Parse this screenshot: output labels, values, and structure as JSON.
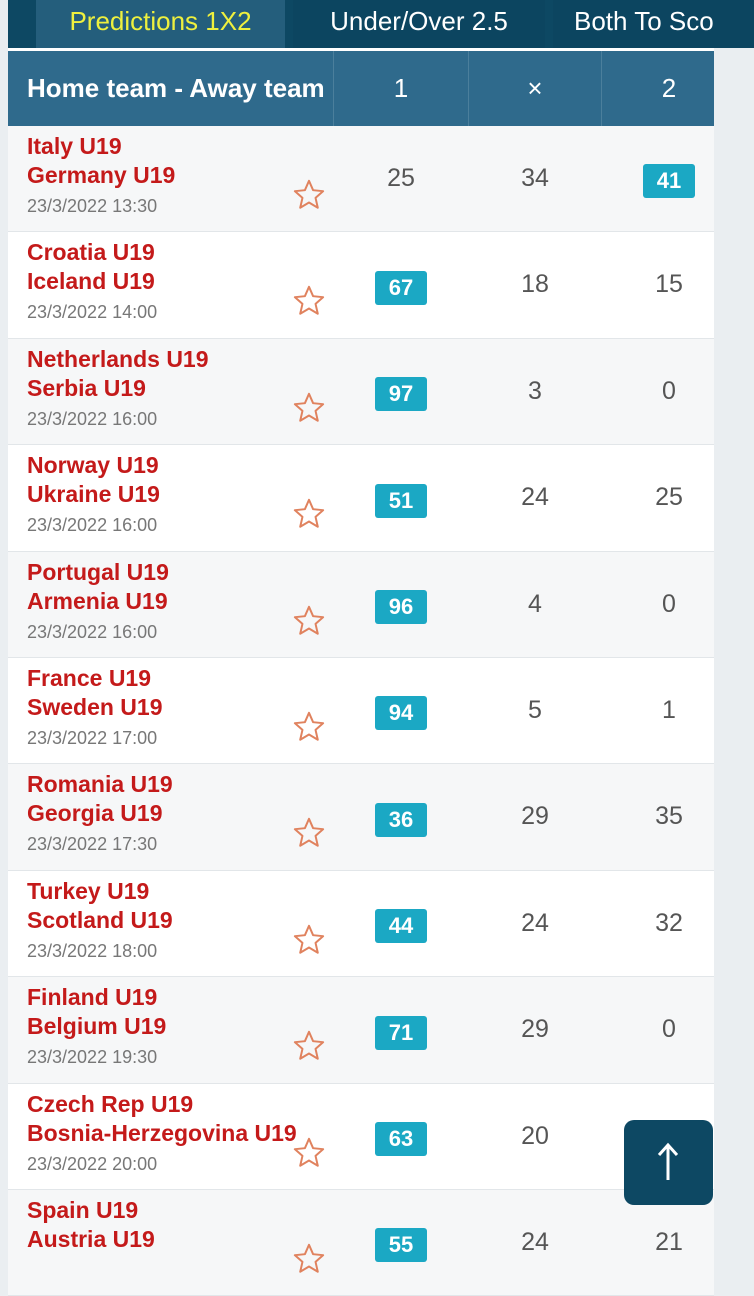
{
  "tabs": [
    {
      "label": "Predictions 1X2",
      "active": true
    },
    {
      "label": "Under/Over 2.5",
      "active": false
    },
    {
      "label": "Both To Sco",
      "active": false
    }
  ],
  "table_header": {
    "team": "Home team - Away team",
    "col1": "1",
    "colx": "×",
    "col2": "2"
  },
  "highlight_color": "#1ba8c4",
  "team_color": "#c41a1a",
  "matches": [
    {
      "home": "Italy U19",
      "away": "Germany U19",
      "date": "23/3/2022 13:30",
      "p1": "25",
      "px": "34",
      "p2": "41",
      "pick": "2"
    },
    {
      "home": "Croatia U19",
      "away": "Iceland U19",
      "date": "23/3/2022 14:00",
      "p1": "67",
      "px": "18",
      "p2": "15",
      "pick": "1"
    },
    {
      "home": "Netherlands U19",
      "away": "Serbia U19",
      "date": "23/3/2022 16:00",
      "p1": "97",
      "px": "3",
      "p2": "0",
      "pick": "1"
    },
    {
      "home": "Norway U19",
      "away": "Ukraine U19",
      "date": "23/3/2022 16:00",
      "p1": "51",
      "px": "24",
      "p2": "25",
      "pick": "1"
    },
    {
      "home": "Portugal U19",
      "away": "Armenia U19",
      "date": "23/3/2022 16:00",
      "p1": "96",
      "px": "4",
      "p2": "0",
      "pick": "1"
    },
    {
      "home": "France U19",
      "away": "Sweden U19",
      "date": "23/3/2022 17:00",
      "p1": "94",
      "px": "5",
      "p2": "1",
      "pick": "1"
    },
    {
      "home": "Romania U19",
      "away": "Georgia U19",
      "date": "23/3/2022 17:30",
      "p1": "36",
      "px": "29",
      "p2": "35",
      "pick": "1"
    },
    {
      "home": "Turkey U19",
      "away": "Scotland U19",
      "date": "23/3/2022 18:00",
      "p1": "44",
      "px": "24",
      "p2": "32",
      "pick": "1"
    },
    {
      "home": "Finland U19",
      "away": "Belgium U19",
      "date": "23/3/2022 19:30",
      "p1": "71",
      "px": "29",
      "p2": "0",
      "pick": "1"
    },
    {
      "home": "Czech Rep U19",
      "away": "Bosnia-Herzegovina U19",
      "date": "23/3/2022 20:00",
      "p1": "63",
      "px": "20",
      "p2": "",
      "pick": "1"
    },
    {
      "home": "Spain U19",
      "away": "Austria U19",
      "date": "",
      "p1": "55",
      "px": "24",
      "p2": "21",
      "pick": "1"
    }
  ],
  "scroll_top_icon": "arrow-up-icon"
}
